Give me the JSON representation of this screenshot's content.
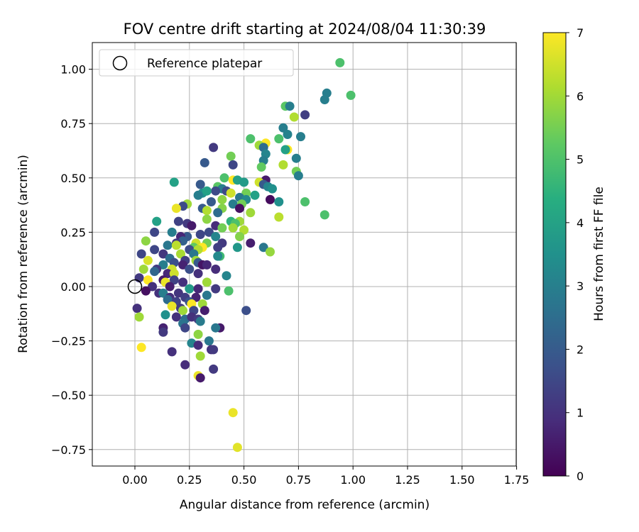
{
  "chart_data": {
    "type": "scatter",
    "title": "FOV centre drift starting at 2024/08/04 11:30:39",
    "xlabel": "Angular distance from reference (arcmin)",
    "ylabel": "Rotation from reference (arcmin)",
    "xlim": [
      -0.2,
      1.76
    ],
    "ylim": [
      -0.83,
      1.12
    ],
    "x_ticks": [
      "0.00",
      "0.25",
      "0.50",
      "0.75",
      "1.00",
      "1.25",
      "1.50",
      "1.75"
    ],
    "y_ticks": [
      "−0.75",
      "−0.50",
      "−0.25",
      "0.00",
      "0.25",
      "0.50",
      "0.75",
      "1.00"
    ],
    "grid": true,
    "legend": {
      "location": "upper-left",
      "entries": [
        "Reference platepar"
      ]
    },
    "reference_point": {
      "x": 0.0,
      "y": 0.0
    },
    "colorbar": {
      "label": "Hours from first FF file",
      "range": [
        0,
        7
      ],
      "ticks": [
        "0",
        "1",
        "2",
        "3",
        "4",
        "5",
        "6",
        "7"
      ],
      "colormap": "viridis"
    },
    "points": [
      {
        "x": 0.94,
        "y": 1.03,
        "h": 5.0
      },
      {
        "x": 0.99,
        "y": 0.88,
        "h": 5.0
      },
      {
        "x": 0.88,
        "y": 0.89,
        "h": 3.0
      },
      {
        "x": 0.87,
        "y": 0.86,
        "h": 3.0
      },
      {
        "x": 0.69,
        "y": 0.83,
        "h": 5.2
      },
      {
        "x": 0.71,
        "y": 0.83,
        "h": 3.0
      },
      {
        "x": 0.78,
        "y": 0.79,
        "h": 1.3
      },
      {
        "x": 0.73,
        "y": 0.78,
        "h": 6.2
      },
      {
        "x": 0.68,
        "y": 0.73,
        "h": 3.0
      },
      {
        "x": 0.7,
        "y": 0.7,
        "h": 3.1
      },
      {
        "x": 0.76,
        "y": 0.69,
        "h": 3.0
      },
      {
        "x": 0.53,
        "y": 0.68,
        "h": 5.0
      },
      {
        "x": 0.66,
        "y": 0.68,
        "h": 5.0
      },
      {
        "x": 0.6,
        "y": 0.66,
        "h": 7.0
      },
      {
        "x": 0.57,
        "y": 0.65,
        "h": 6.0
      },
      {
        "x": 0.59,
        "y": 0.64,
        "h": 2.5
      },
      {
        "x": 0.36,
        "y": 0.64,
        "h": 1.2
      },
      {
        "x": 0.7,
        "y": 0.63,
        "h": 7.0
      },
      {
        "x": 0.69,
        "y": 0.63,
        "h": 4.0
      },
      {
        "x": 0.6,
        "y": 0.61,
        "h": 3.2
      },
      {
        "x": 0.44,
        "y": 0.6,
        "h": 5.5
      },
      {
        "x": 0.74,
        "y": 0.59,
        "h": 3.0
      },
      {
        "x": 0.59,
        "y": 0.58,
        "h": 3.0
      },
      {
        "x": 0.32,
        "y": 0.57,
        "h": 2.0
      },
      {
        "x": 0.45,
        "y": 0.56,
        "h": 1.5
      },
      {
        "x": 0.68,
        "y": 0.56,
        "h": 6.2
      },
      {
        "x": 0.58,
        "y": 0.55,
        "h": 5.3
      },
      {
        "x": 0.74,
        "y": 0.53,
        "h": 5.5
      },
      {
        "x": 0.75,
        "y": 0.51,
        "h": 3.0
      },
      {
        "x": 0.41,
        "y": 0.5,
        "h": 5.0
      },
      {
        "x": 0.45,
        "y": 0.49,
        "h": 7.0
      },
      {
        "x": 0.47,
        "y": 0.49,
        "h": 4.0
      },
      {
        "x": 0.6,
        "y": 0.49,
        "h": 0.5
      },
      {
        "x": 0.18,
        "y": 0.48,
        "h": 4.0
      },
      {
        "x": 0.5,
        "y": 0.48,
        "h": 3.8
      },
      {
        "x": 0.57,
        "y": 0.48,
        "h": 6.5
      },
      {
        "x": 0.59,
        "y": 0.47,
        "h": 2.0
      },
      {
        "x": 0.3,
        "y": 0.47,
        "h": 2.0
      },
      {
        "x": 0.38,
        "y": 0.46,
        "h": 5.2
      },
      {
        "x": 0.61,
        "y": 0.46,
        "h": 3.2
      },
      {
        "x": 0.63,
        "y": 0.45,
        "h": 3.5
      },
      {
        "x": 0.4,
        "y": 0.45,
        "h": 3.0
      },
      {
        "x": 0.37,
        "y": 0.44,
        "h": 1.6
      },
      {
        "x": 0.42,
        "y": 0.44,
        "h": 1.6
      },
      {
        "x": 0.31,
        "y": 0.43,
        "h": 3.5
      },
      {
        "x": 0.33,
        "y": 0.44,
        "h": 4.0
      },
      {
        "x": 0.51,
        "y": 0.43,
        "h": 5.5
      },
      {
        "x": 0.44,
        "y": 0.43,
        "h": 6.5
      },
      {
        "x": 0.55,
        "y": 0.42,
        "h": 4.0
      },
      {
        "x": 0.48,
        "y": 0.41,
        "h": 2.8
      },
      {
        "x": 0.29,
        "y": 0.42,
        "h": 3.0
      },
      {
        "x": 0.62,
        "y": 0.4,
        "h": 0.2
      },
      {
        "x": 0.4,
        "y": 0.4,
        "h": 5.8
      },
      {
        "x": 0.51,
        "y": 0.4,
        "h": 3.3
      },
      {
        "x": 0.66,
        "y": 0.39,
        "h": 3.5
      },
      {
        "x": 0.78,
        "y": 0.39,
        "h": 5.0
      },
      {
        "x": 0.35,
        "y": 0.39,
        "h": 2.0
      },
      {
        "x": 0.45,
        "y": 0.38,
        "h": 3.0
      },
      {
        "x": 0.24,
        "y": 0.38,
        "h": 6.0
      },
      {
        "x": 0.49,
        "y": 0.38,
        "h": 5.5
      },
      {
        "x": 0.22,
        "y": 0.37,
        "h": 1.6
      },
      {
        "x": 0.19,
        "y": 0.36,
        "h": 6.8
      },
      {
        "x": 0.31,
        "y": 0.36,
        "h": 2.0
      },
      {
        "x": 0.48,
        "y": 0.36,
        "h": 0.3
      },
      {
        "x": 0.4,
        "y": 0.36,
        "h": 5.7
      },
      {
        "x": 0.33,
        "y": 0.35,
        "h": 6.2
      },
      {
        "x": 0.38,
        "y": 0.34,
        "h": 2.5
      },
      {
        "x": 0.53,
        "y": 0.34,
        "h": 6.0
      },
      {
        "x": 0.87,
        "y": 0.33,
        "h": 5.0
      },
      {
        "x": 0.66,
        "y": 0.32,
        "h": 6.3
      },
      {
        "x": 0.33,
        "y": 0.31,
        "h": 5.8
      },
      {
        "x": 0.1,
        "y": 0.3,
        "h": 4.0
      },
      {
        "x": 0.2,
        "y": 0.3,
        "h": 1.4
      },
      {
        "x": 0.44,
        "y": 0.3,
        "h": 4.5
      },
      {
        "x": 0.48,
        "y": 0.3,
        "h": 6.0
      },
      {
        "x": 0.46,
        "y": 0.29,
        "h": 5.0
      },
      {
        "x": 0.24,
        "y": 0.29,
        "h": 1.2
      },
      {
        "x": 0.26,
        "y": 0.28,
        "h": 0.5
      },
      {
        "x": 0.37,
        "y": 0.28,
        "h": 0.9
      },
      {
        "x": 0.45,
        "y": 0.27,
        "h": 6.0
      },
      {
        "x": 0.4,
        "y": 0.27,
        "h": 5.5
      },
      {
        "x": 0.5,
        "y": 0.26,
        "h": 6.2
      },
      {
        "x": 0.09,
        "y": 0.25,
        "h": 1.5
      },
      {
        "x": 0.17,
        "y": 0.25,
        "h": 3.0
      },
      {
        "x": 0.34,
        "y": 0.25,
        "h": 1.6
      },
      {
        "x": 0.3,
        "y": 0.24,
        "h": 1.5
      },
      {
        "x": 0.37,
        "y": 0.23,
        "h": 3.2
      },
      {
        "x": 0.24,
        "y": 0.23,
        "h": 2.0
      },
      {
        "x": 0.48,
        "y": 0.23,
        "h": 5.7
      },
      {
        "x": 0.21,
        "y": 0.23,
        "h": 0.8
      },
      {
        "x": 0.22,
        "y": 0.21,
        "h": 2.2
      },
      {
        "x": 0.05,
        "y": 0.21,
        "h": 5.8
      },
      {
        "x": 0.19,
        "y": 0.2,
        "h": 1.2
      },
      {
        "x": 0.28,
        "y": 0.2,
        "h": 6.5
      },
      {
        "x": 0.33,
        "y": 0.2,
        "h": 5.5
      },
      {
        "x": 0.4,
        "y": 0.2,
        "h": 1.2
      },
      {
        "x": 0.53,
        "y": 0.2,
        "h": 0.6
      },
      {
        "x": 0.15,
        "y": 0.19,
        "h": 2.8
      },
      {
        "x": 0.19,
        "y": 0.19,
        "h": 6.3
      },
      {
        "x": 0.27,
        "y": 0.18,
        "h": 5.3
      },
      {
        "x": 0.31,
        "y": 0.18,
        "h": 7.0
      },
      {
        "x": 0.38,
        "y": 0.18,
        "h": 1.3
      },
      {
        "x": 0.47,
        "y": 0.18,
        "h": 3.7
      },
      {
        "x": 0.59,
        "y": 0.18,
        "h": 2.8
      },
      {
        "x": 0.09,
        "y": 0.17,
        "h": 1.5
      },
      {
        "x": 0.25,
        "y": 0.17,
        "h": 1.6
      },
      {
        "x": 0.29,
        "y": 0.17,
        "h": 6.2
      },
      {
        "x": 0.62,
        "y": 0.16,
        "h": 5.9
      },
      {
        "x": 0.03,
        "y": 0.15,
        "h": 1.5
      },
      {
        "x": 0.13,
        "y": 0.15,
        "h": 1.1
      },
      {
        "x": 0.21,
        "y": 0.15,
        "h": 6.1
      },
      {
        "x": 0.27,
        "y": 0.15,
        "h": 2.8
      },
      {
        "x": 0.39,
        "y": 0.14,
        "h": 4.8
      },
      {
        "x": 0.38,
        "y": 0.14,
        "h": 3.3
      },
      {
        "x": 0.16,
        "y": 0.13,
        "h": 2.5
      },
      {
        "x": 0.06,
        "y": 0.12,
        "h": 6.6
      },
      {
        "x": 0.23,
        "y": 0.12,
        "h": 1.3
      },
      {
        "x": 0.28,
        "y": 0.12,
        "h": 6.0
      },
      {
        "x": 0.29,
        "y": 0.11,
        "h": 2.0
      },
      {
        "x": 0.18,
        "y": 0.11,
        "h": 1.7
      },
      {
        "x": 0.13,
        "y": 0.1,
        "h": 3.0
      },
      {
        "x": 0.22,
        "y": 0.1,
        "h": 0.7
      },
      {
        "x": 0.31,
        "y": 0.1,
        "h": 0.4
      },
      {
        "x": 0.33,
        "y": 0.1,
        "h": 0.8
      },
      {
        "x": 0.04,
        "y": 0.08,
        "h": 6.0
      },
      {
        "x": 0.1,
        "y": 0.08,
        "h": 1.2
      },
      {
        "x": 0.17,
        "y": 0.08,
        "h": 6.5
      },
      {
        "x": 0.25,
        "y": 0.08,
        "h": 1.7
      },
      {
        "x": 0.37,
        "y": 0.08,
        "h": 0.9
      },
      {
        "x": 0.09,
        "y": 0.07,
        "h": 2.3
      },
      {
        "x": 0.15,
        "y": 0.06,
        "h": 0.8
      },
      {
        "x": 0.18,
        "y": 0.06,
        "h": 6.5
      },
      {
        "x": 0.29,
        "y": 0.06,
        "h": 1.0
      },
      {
        "x": 0.42,
        "y": 0.05,
        "h": 3.2
      },
      {
        "x": 0.02,
        "y": 0.04,
        "h": 1.2
      },
      {
        "x": 0.06,
        "y": 0.03,
        "h": 7.0
      },
      {
        "x": 0.13,
        "y": 0.03,
        "h": 0.5
      },
      {
        "x": 0.18,
        "y": 0.03,
        "h": 1.4
      },
      {
        "x": 0.22,
        "y": 0.02,
        "h": 1.0
      },
      {
        "x": 0.14,
        "y": 0.02,
        "h": 6.8
      },
      {
        "x": 0.33,
        "y": 0.02,
        "h": 6.0
      },
      {
        "x": 0.08,
        "y": 0.0,
        "h": 1.0
      },
      {
        "x": 0.16,
        "y": 0.0,
        "h": 0.6
      },
      {
        "x": 0.25,
        "y": -0.01,
        "h": 3.8
      },
      {
        "x": 0.29,
        "y": -0.01,
        "h": 0.8
      },
      {
        "x": 0.37,
        "y": -0.01,
        "h": 1.2
      },
      {
        "x": 0.43,
        "y": -0.02,
        "h": 5.0
      },
      {
        "x": 0.05,
        "y": -0.02,
        "h": 0.3
      },
      {
        "x": 0.11,
        "y": -0.03,
        "h": 1.0
      },
      {
        "x": 0.13,
        "y": -0.03,
        "h": 3.0
      },
      {
        "x": 0.2,
        "y": -0.03,
        "h": 1.1
      },
      {
        "x": 0.33,
        "y": -0.04,
        "h": 2.8
      },
      {
        "x": 0.16,
        "y": -0.05,
        "h": 1.0
      },
      {
        "x": 0.23,
        "y": -0.05,
        "h": 1.3
      },
      {
        "x": 0.28,
        "y": -0.05,
        "h": 0.7
      },
      {
        "x": 0.15,
        "y": -0.06,
        "h": 2.5
      },
      {
        "x": 0.19,
        "y": -0.07,
        "h": 1.4
      },
      {
        "x": 0.25,
        "y": -0.07,
        "h": 1.8
      },
      {
        "x": 0.31,
        "y": -0.08,
        "h": 6.0
      },
      {
        "x": 0.26,
        "y": -0.08,
        "h": 7.0
      },
      {
        "x": 0.17,
        "y": -0.09,
        "h": 6.8
      },
      {
        "x": 0.01,
        "y": -0.1,
        "h": 1.0
      },
      {
        "x": 0.21,
        "y": -0.1,
        "h": 1.2
      },
      {
        "x": 0.22,
        "y": -0.11,
        "h": 6.0
      },
      {
        "x": 0.32,
        "y": -0.11,
        "h": 0.6
      },
      {
        "x": 0.27,
        "y": -0.11,
        "h": 1.5
      },
      {
        "x": 0.51,
        "y": -0.11,
        "h": 1.7
      },
      {
        "x": 0.14,
        "y": -0.13,
        "h": 3.5
      },
      {
        "x": 0.02,
        "y": -0.14,
        "h": 6.0
      },
      {
        "x": 0.19,
        "y": -0.14,
        "h": 1.0
      },
      {
        "x": 0.23,
        "y": -0.15,
        "h": 2.5
      },
      {
        "x": 0.26,
        "y": -0.14,
        "h": 1.0
      },
      {
        "x": 0.29,
        "y": -0.15,
        "h": 1.2
      },
      {
        "x": 0.3,
        "y": -0.16,
        "h": 2.9
      },
      {
        "x": 0.22,
        "y": -0.17,
        "h": 2.7
      },
      {
        "x": 0.13,
        "y": -0.19,
        "h": 0.7
      },
      {
        "x": 0.23,
        "y": -0.19,
        "h": 1.5
      },
      {
        "x": 0.39,
        "y": -0.19,
        "h": 0.5
      },
      {
        "x": 0.37,
        "y": -0.19,
        "h": 2.8
      },
      {
        "x": 0.13,
        "y": -0.21,
        "h": 1.2
      },
      {
        "x": 0.29,
        "y": -0.22,
        "h": 5.8
      },
      {
        "x": 0.26,
        "y": -0.26,
        "h": 3.2
      },
      {
        "x": 0.34,
        "y": -0.25,
        "h": 2.8
      },
      {
        "x": 0.03,
        "y": -0.28,
        "h": 7.0
      },
      {
        "x": 0.29,
        "y": -0.27,
        "h": 0.9
      },
      {
        "x": 0.35,
        "y": -0.29,
        "h": 1.0
      },
      {
        "x": 0.36,
        "y": -0.29,
        "h": 1.2
      },
      {
        "x": 0.17,
        "y": -0.3,
        "h": 1.0
      },
      {
        "x": 0.3,
        "y": -0.32,
        "h": 6.0
      },
      {
        "x": 0.23,
        "y": -0.36,
        "h": 0.9
      },
      {
        "x": 0.36,
        "y": -0.38,
        "h": 1.2
      },
      {
        "x": 0.29,
        "y": -0.41,
        "h": 6.8
      },
      {
        "x": 0.3,
        "y": -0.42,
        "h": 0.5
      },
      {
        "x": 0.45,
        "y": -0.58,
        "h": 6.8
      },
      {
        "x": 0.47,
        "y": -0.74,
        "h": 6.7
      }
    ]
  }
}
